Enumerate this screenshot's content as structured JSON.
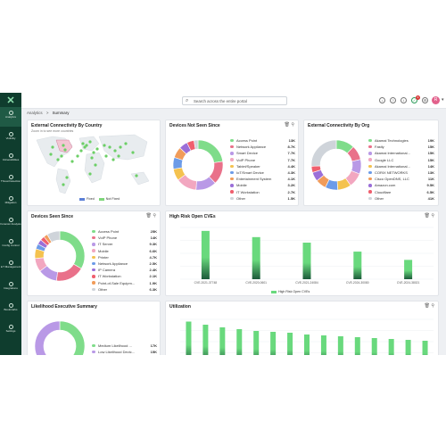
{
  "topbar": {
    "search_placeholder": "Search across the entire portal",
    "avatar_initial": "R",
    "notif_count": "3"
  },
  "breadcrumb": [
    "Analytics",
    ">",
    "Summary"
  ],
  "sidebar": {
    "items": [
      {
        "label": "Analytics",
        "icon": "analytics-icon",
        "active": true
      },
      {
        "label": "Visibility",
        "icon": "eye-icon"
      },
      {
        "label": "Vulnerabilities",
        "icon": "bug-icon"
      },
      {
        "label": "Threat Detection",
        "icon": "radar-icon"
      },
      {
        "label": "Mitigation",
        "icon": "shield-icon"
      },
      {
        "label": "Forensic Analysis",
        "icon": "magnifier-icon"
      },
      {
        "label": "Config Control",
        "icon": "gear-icon"
      },
      {
        "label": "IoT Management",
        "icon": "chip-icon"
      },
      {
        "label": "Integrations",
        "icon": "plug-icon"
      },
      {
        "label": "Bookmarks",
        "icon": "bookmark-icon"
      },
      {
        "label": "Settings",
        "icon": "settings-icon"
      }
    ]
  },
  "cards": {
    "ext_country": {
      "title": "External Connectivity By Country",
      "subtitle": "Zoom in to see more countries",
      "legend": [
        {
          "label": "Fixed",
          "color": "#5b7fd6"
        },
        {
          "label": "Not Fixed",
          "color": "#7ed67a"
        }
      ]
    },
    "not_seen": {
      "title": "Devices Not Seen Since",
      "items": [
        {
          "label": "Access Point",
          "value": "13K",
          "color": "#7fdc8a"
        },
        {
          "label": "Network Appliance",
          "value": "8.7K",
          "color": "#e9718a"
        },
        {
          "label": "Smart Device",
          "value": "7.7K",
          "color": "#b999e6"
        },
        {
          "label": "VoIP Phone",
          "value": "7.7K",
          "color": "#f2a7c0"
        },
        {
          "label": "Tablet/Speaker",
          "value": "4.4K",
          "color": "#f4c24f"
        },
        {
          "label": "IoT/Smart Device",
          "value": "4.3K",
          "color": "#6c9be8"
        },
        {
          "label": "Entertainment System",
          "value": "4.1K",
          "color": "#f19c5a"
        },
        {
          "label": "Mobile",
          "value": "3.2K",
          "color": "#9b6fd8"
        },
        {
          "label": "IT Workstation",
          "value": "2.7K",
          "color": "#ef5f6e"
        },
        {
          "label": "Other",
          "value": "1.5K",
          "color": "#cfd4da"
        }
      ]
    },
    "ext_org": {
      "title": "External Connectivity By Org",
      "items": [
        {
          "label": "Akamai Technologies",
          "value": "19K",
          "color": "#7fdc8a"
        },
        {
          "label": "Fastly",
          "value": "15K",
          "color": "#e9718a"
        },
        {
          "label": "Akamai International...",
          "value": "15K",
          "color": "#b999e6"
        },
        {
          "label": "Google LLC",
          "value": "15K",
          "color": "#f2a7c0"
        },
        {
          "label": "Akamai International...",
          "value": "14K",
          "color": "#f4c24f"
        },
        {
          "label": "CORIX NETWORKS",
          "value": "13K",
          "color": "#6c9be8"
        },
        {
          "label": "Cisco OpenDNS, LLC",
          "value": "11K",
          "color": "#f19c5a"
        },
        {
          "label": "Amazon.com",
          "value": "9.5K",
          "color": "#9b6fd8"
        },
        {
          "label": "Cloudflare",
          "value": "6.5K",
          "color": "#ef5f6e"
        },
        {
          "label": "Other",
          "value": "41K",
          "color": "#cfd4da"
        }
      ]
    },
    "seen_since": {
      "title": "Devices Seen Since",
      "items": [
        {
          "label": "Access Point",
          "value": "25K",
          "color": "#7fdc8a"
        },
        {
          "label": "VoIP Phone",
          "value": "14K",
          "color": "#e9718a"
        },
        {
          "label": "IT Server",
          "value": "9.3K",
          "color": "#b999e6"
        },
        {
          "label": "Mobile",
          "value": "6.6K",
          "color": "#f2a7c0"
        },
        {
          "label": "Printer",
          "value": "4.7K",
          "color": "#f4c24f"
        },
        {
          "label": "Network Appliance",
          "value": "2.5K",
          "color": "#6c9be8"
        },
        {
          "label": "IP Camera",
          "value": "2.4K",
          "color": "#9b6fd8"
        },
        {
          "label": "IT Workstation",
          "value": "2.1K",
          "color": "#ef5f6e"
        },
        {
          "label": "Point-of-Sale Equipm...",
          "value": "1.9K",
          "color": "#f19c5a"
        },
        {
          "label": "Other",
          "value": "6.3K",
          "color": "#cfd4da"
        }
      ]
    },
    "high_risk": {
      "title": "High Risk Open CVEs",
      "legend_label": "High Risk Open CVEs"
    },
    "exec_summary": {
      "title": "Likelihood Executive Summary",
      "items": [
        {
          "label": "Medium Likelihood ...",
          "value": "17K",
          "color": "#7fdc8a"
        },
        {
          "label": "Low Likelihood Devic...",
          "value": "15K",
          "color": "#b999e6"
        }
      ]
    },
    "utilization": {
      "title": "Utilization"
    }
  },
  "chart_data": [
    {
      "type": "bar",
      "title": "High Risk Open CVEs",
      "categories": [
        "CVE-2021-37748",
        "CVE-2020-0601",
        "CVE-2021-24084",
        "CVE-2024-30080",
        "CVE-2024-38021"
      ],
      "series": [
        {
          "name": "High Risk Open CVEs",
          "values": [
            70,
            61,
            53,
            40,
            28
          ]
        }
      ],
      "ylim": [
        0,
        75
      ],
      "color": "#69d97d"
    },
    {
      "type": "bar",
      "title": "Utilization",
      "categories": [
        "1",
        "2",
        "3",
        "4",
        "5",
        "6",
        "7",
        "8",
        "9",
        "10",
        "11",
        "12",
        "13",
        "14",
        "15"
      ],
      "series": [
        {
          "name": "",
          "values": [
            95,
            88,
            82,
            78,
            74,
            72,
            70,
            66,
            64,
            62,
            60,
            58,
            56,
            54,
            52
          ]
        }
      ],
      "ylim": [
        0,
        100
      ],
      "color": "#69d97d"
    }
  ]
}
